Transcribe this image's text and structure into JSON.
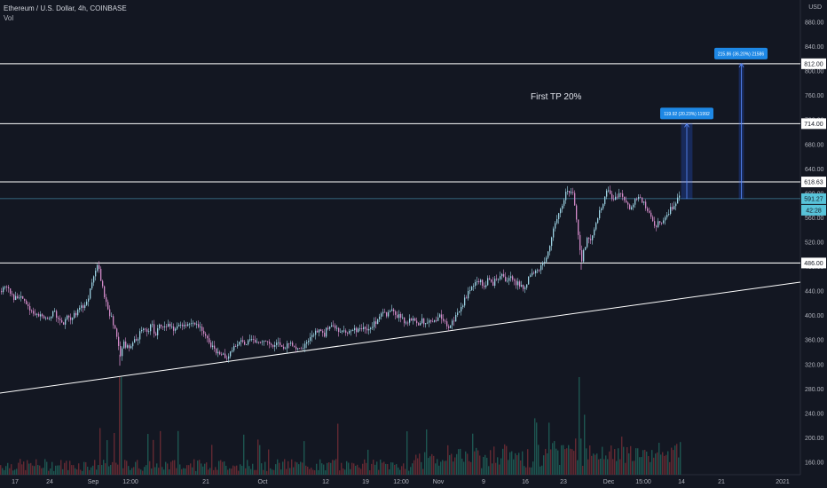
{
  "header": {
    "symbol_line": "Ethereum / U.S. Dollar, 4h, COINBASE",
    "indicator": "Vol",
    "currency": "USD"
  },
  "chart_data": {
    "type": "candlestick",
    "y_ticks": [
      160,
      200,
      240,
      280,
      320,
      360,
      400,
      440,
      480,
      520,
      560,
      600,
      640,
      680,
      720,
      760,
      800,
      840,
      880
    ],
    "x_ticks": [
      "17",
      "24",
      "Sep",
      "12:00",
      "21",
      "Oct",
      "12",
      "19",
      "12:00",
      "Nov",
      "9",
      "16",
      "23",
      "Dec",
      "15:00",
      "14",
      "21",
      "2021"
    ],
    "ylim": [
      140,
      900
    ],
    "price_path": [
      [
        0,
        440
      ],
      [
        6,
        445
      ],
      [
        10,
        442
      ],
      [
        15,
        430
      ],
      [
        20,
        424
      ],
      [
        25,
        431
      ],
      [
        30,
        418
      ],
      [
        35,
        408
      ],
      [
        40,
        398
      ],
      [
        45,
        403
      ],
      [
        50,
        393
      ],
      [
        55,
        400
      ],
      [
        60,
        406
      ],
      [
        65,
        395
      ],
      [
        70,
        388
      ],
      [
        75,
        396
      ],
      [
        80,
        392
      ],
      [
        85,
        405
      ],
      [
        90,
        414
      ],
      [
        95,
        418
      ],
      [
        100,
        435
      ],
      [
        105,
        461
      ],
      [
        108,
        485
      ],
      [
        111,
        472
      ],
      [
        114,
        452
      ],
      [
        118,
        425
      ],
      [
        122,
        405
      ],
      [
        125,
        397
      ],
      [
        128,
        382
      ],
      [
        132,
        364
      ],
      [
        135,
        336
      ],
      [
        139,
        355
      ],
      [
        144,
        345
      ],
      [
        150,
        362
      ],
      [
        155,
        365
      ],
      [
        160,
        380
      ],
      [
        165,
        373
      ],
      [
        170,
        385
      ],
      [
        175,
        368
      ],
      [
        180,
        385
      ],
      [
        185,
        378
      ],
      [
        190,
        388
      ],
      [
        195,
        373
      ],
      [
        200,
        385
      ],
      [
        205,
        383
      ],
      [
        210,
        388
      ],
      [
        215,
        391
      ],
      [
        220,
        385
      ],
      [
        225,
        380
      ],
      [
        230,
        372
      ],
      [
        235,
        353
      ],
      [
        240,
        345
      ],
      [
        245,
        341
      ],
      [
        250,
        336
      ],
      [
        254,
        330
      ],
      [
        260,
        345
      ],
      [
        265,
        350
      ],
      [
        270,
        356
      ],
      [
        275,
        354
      ],
      [
        280,
        357
      ],
      [
        285,
        360
      ],
      [
        290,
        352
      ],
      [
        295,
        357
      ],
      [
        300,
        356
      ],
      [
        305,
        353
      ],
      [
        310,
        351
      ],
      [
        315,
        354
      ],
      [
        320,
        348
      ],
      [
        325,
        352
      ],
      [
        330,
        351
      ],
      [
        335,
        347
      ],
      [
        340,
        346
      ],
      [
        345,
        358
      ],
      [
        350,
        368
      ],
      [
        355,
        375
      ],
      [
        360,
        374
      ],
      [
        365,
        370
      ],
      [
        370,
        385
      ],
      [
        375,
        382
      ],
      [
        380,
        378
      ],
      [
        385,
        376
      ],
      [
        390,
        373
      ],
      [
        395,
        378
      ],
      [
        400,
        375
      ],
      [
        405,
        380
      ],
      [
        410,
        378
      ],
      [
        415,
        379
      ],
      [
        420,
        386
      ],
      [
        425,
        393
      ],
      [
        430,
        408
      ],
      [
        435,
        400
      ],
      [
        440,
        410
      ],
      [
        445,
        398
      ],
      [
        450,
        402
      ],
      [
        455,
        388
      ],
      [
        460,
        393
      ],
      [
        465,
        392
      ],
      [
        470,
        387
      ],
      [
        475,
        392
      ],
      [
        480,
        388
      ],
      [
        485,
        391
      ],
      [
        490,
        392
      ],
      [
        495,
        398
      ],
      [
        500,
        390
      ],
      [
        505,
        382
      ],
      [
        510,
        392
      ],
      [
        515,
        402
      ],
      [
        520,
        415
      ],
      [
        525,
        432
      ],
      [
        530,
        443
      ],
      [
        535,
        452
      ],
      [
        540,
        458
      ],
      [
        545,
        445
      ],
      [
        550,
        460
      ],
      [
        555,
        452
      ],
      [
        560,
        462
      ],
      [
        565,
        465
      ],
      [
        570,
        452
      ],
      [
        575,
        468
      ],
      [
        580,
        455
      ],
      [
        585,
        450
      ],
      [
        590,
        443
      ],
      [
        595,
        460
      ],
      [
        600,
        472
      ],
      [
        605,
        473
      ],
      [
        610,
        480
      ],
      [
        615,
        492
      ],
      [
        620,
        525
      ],
      [
        625,
        548
      ],
      [
        630,
        568
      ],
      [
        635,
        593
      ],
      [
        638,
        610
      ],
      [
        641,
        603
      ],
      [
        644,
        608
      ],
      [
        648,
        575
      ],
      [
        652,
        515
      ],
      [
        655,
        485
      ],
      [
        658,
        512
      ],
      [
        662,
        530
      ],
      [
        666,
        520
      ],
      [
        670,
        548
      ],
      [
        674,
        568
      ],
      [
        678,
        582
      ],
      [
        682,
        600
      ],
      [
        686,
        605
      ],
      [
        690,
        585
      ],
      [
        694,
        592
      ],
      [
        698,
        602
      ],
      [
        702,
        596
      ],
      [
        706,
        582
      ],
      [
        710,
        575
      ],
      [
        714,
        588
      ],
      [
        718,
        597
      ],
      [
        722,
        590
      ],
      [
        726,
        582
      ],
      [
        730,
        573
      ],
      [
        734,
        560
      ],
      [
        738,
        545
      ],
      [
        742,
        555
      ],
      [
        746,
        552
      ],
      [
        750,
        558
      ],
      [
        754,
        572
      ],
      [
        758,
        580
      ],
      [
        762,
        590
      ],
      [
        765,
        592
      ]
    ],
    "volume_spike_x": [
      135,
      652
    ],
    "h_levels": [
      {
        "price": 812,
        "label": "812.00"
      },
      {
        "price": 714,
        "label": "714.00"
      },
      {
        "price": 618.63,
        "label": "618.63"
      },
      {
        "price": 486,
        "label": "486.00"
      }
    ],
    "current_price": {
      "price": 591.27,
      "label": "591.27",
      "countdown": "42:28"
    },
    "trendline": {
      "from": [
        "start",
        273
      ],
      "to": [
        "end",
        452
      ]
    },
    "swing_line": {
      "price": 486,
      "x_from": "Sep"
    },
    "annotations": [
      {
        "text": "First TP 20%"
      },
      {
        "text": "119.92 (20.23%) 11992",
        "target": 714,
        "base": 591
      },
      {
        "text": "215.86 (36.20%) 21586",
        "target": 812,
        "base": 591
      }
    ],
    "colors": {
      "bg": "#131722",
      "up": "#26a69a",
      "down": "#ef5350",
      "candle_up": "#9ad0e0",
      "candle_down": "#d28ac8",
      "accent": "#2962ff",
      "line": "#ffffff"
    }
  }
}
